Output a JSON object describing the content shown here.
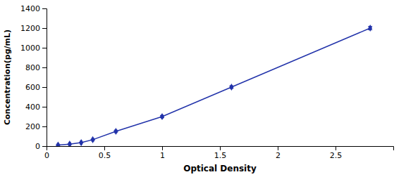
{
  "chart_data": {
    "type": "line",
    "xlabel": "Optical Density",
    "ylabel": "Concentration(pg/mL)",
    "x": [
      0.1,
      0.2,
      0.3,
      0.4,
      0.6,
      1.0,
      1.6,
      2.8
    ],
    "values": [
      10,
      20,
      35,
      65,
      150,
      300,
      600,
      1200
    ],
    "yerr": [
      4,
      4,
      4,
      4,
      7,
      10,
      12,
      18
    ],
    "xerr": [
      0.008,
      0.008,
      0.008,
      0.008,
      0.008,
      0.008,
      0.008,
      0.008
    ],
    "color": "#2233AA",
    "marker": "diamond",
    "xlim": [
      0,
      3.0
    ],
    "ylim": [
      0,
      1400
    ],
    "xticks": [
      0,
      0.5,
      1,
      1.5,
      2,
      2.5
    ],
    "yticks": [
      0,
      200,
      400,
      600,
      800,
      1000,
      1200,
      1400
    ],
    "grid": false
  }
}
